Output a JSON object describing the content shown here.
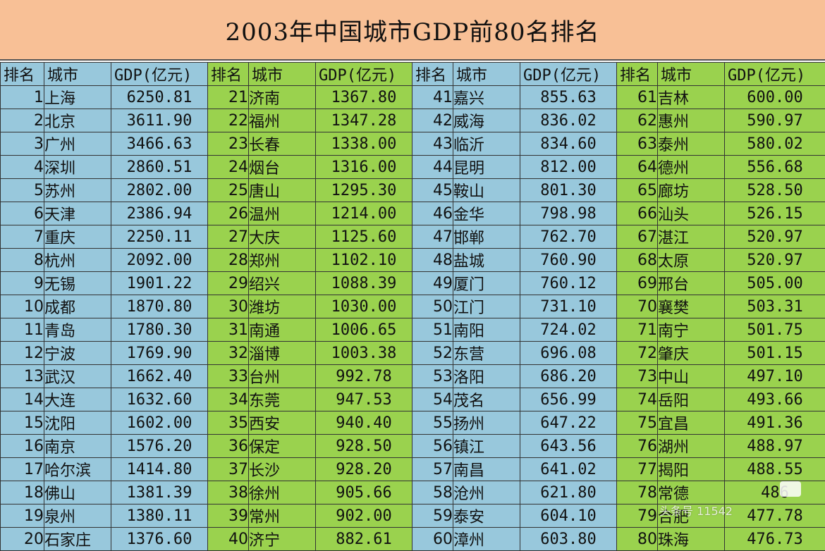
{
  "title": "2003年中国城市GDP前80名排名",
  "headers": {
    "rank": "排名",
    "city": "城市",
    "gdp": "GDP(亿元)"
  },
  "colors": {
    "title_bg": "#f8c096",
    "blue": "#98c8dc",
    "green": "#9ad24e"
  },
  "rows": [
    [
      "1",
      "上海",
      "6250.81",
      "21",
      "济南",
      "1367.80",
      "41",
      "嘉兴",
      "855.63",
      "61",
      "吉林",
      "600.00"
    ],
    [
      "2",
      "北京",
      "3611.90",
      "22",
      "福州",
      "1347.28",
      "42",
      "威海",
      "836.02",
      "62",
      "惠州",
      "590.97"
    ],
    [
      "3",
      "广州",
      "3466.63",
      "23",
      "长春",
      "1338.00",
      "43",
      "临沂",
      "834.60",
      "63",
      "泰州",
      "580.02"
    ],
    [
      "4",
      "深圳",
      "2860.51",
      "24",
      "烟台",
      "1316.00",
      "44",
      "昆明",
      "812.00",
      "64",
      "德州",
      "556.68"
    ],
    [
      "5",
      "苏州",
      "2802.00",
      "25",
      "唐山",
      "1295.30",
      "45",
      "鞍山",
      "801.30",
      "65",
      "廊坊",
      "528.50"
    ],
    [
      "6",
      "天津",
      "2386.94",
      "26",
      "温州",
      "1214.00",
      "46",
      "金华",
      "798.98",
      "66",
      "汕头",
      "526.15"
    ],
    [
      "7",
      "重庆",
      "2250.11",
      "27",
      "大庆",
      "1125.60",
      "47",
      "邯郸",
      "762.70",
      "67",
      "湛江",
      "520.97"
    ],
    [
      "8",
      "杭州",
      "2092.00",
      "28",
      "郑州",
      "1102.10",
      "48",
      "盐城",
      "760.90",
      "68",
      "太原",
      "520.97"
    ],
    [
      "9",
      "无锡",
      "1901.22",
      "29",
      "绍兴",
      "1088.39",
      "49",
      "厦门",
      "760.12",
      "69",
      "邢台",
      "505.00"
    ],
    [
      "10",
      "成都",
      "1870.80",
      "30",
      "潍坊",
      "1030.00",
      "50",
      "江门",
      "731.10",
      "70",
      "襄樊",
      "503.31"
    ],
    [
      "11",
      "青岛",
      "1780.30",
      "31",
      "南通",
      "1006.65",
      "51",
      "南阳",
      "724.02",
      "71",
      "南宁",
      "501.75"
    ],
    [
      "12",
      "宁波",
      "1769.90",
      "32",
      "淄博",
      "1003.38",
      "52",
      "东营",
      "696.08",
      "72",
      "肇庆",
      "501.15"
    ],
    [
      "13",
      "武汉",
      "1662.40",
      "33",
      "台州",
      "992.78",
      "53",
      "洛阳",
      "686.20",
      "73",
      "中山",
      "497.10"
    ],
    [
      "14",
      "大连",
      "1632.60",
      "34",
      "东莞",
      "947.53",
      "54",
      "茂名",
      "656.99",
      "74",
      "岳阳",
      "493.66"
    ],
    [
      "15",
      "沈阳",
      "1602.00",
      "35",
      "西安",
      "940.40",
      "55",
      "扬州",
      "647.22",
      "75",
      "宜昌",
      "491.36"
    ],
    [
      "16",
      "南京",
      "1576.20",
      "36",
      "保定",
      "928.50",
      "56",
      "镇江",
      "643.56",
      "76",
      "湖州",
      "488.97"
    ],
    [
      "17",
      "哈尔滨",
      "1414.80",
      "37",
      "长沙",
      "928.20",
      "57",
      "南昌",
      "641.02",
      "77",
      "揭阳",
      "488.55"
    ],
    [
      "18",
      "佛山",
      "1381.39",
      "38",
      "徐州",
      "905.66",
      "58",
      "沧州",
      "621.80",
      "78",
      "常德",
      "486"
    ],
    [
      "19",
      "泉州",
      "1380.11",
      "39",
      "常州",
      "902.00",
      "59",
      "泰安",
      "604.10",
      "79",
      "合肥",
      "477.78"
    ],
    [
      "20",
      "石家庄",
      "1376.60",
      "40",
      "济宁",
      "882.61",
      "60",
      "漳州",
      "603.80",
      "80",
      "珠海",
      "476.73"
    ]
  ],
  "watermark": "头条号 11542"
}
